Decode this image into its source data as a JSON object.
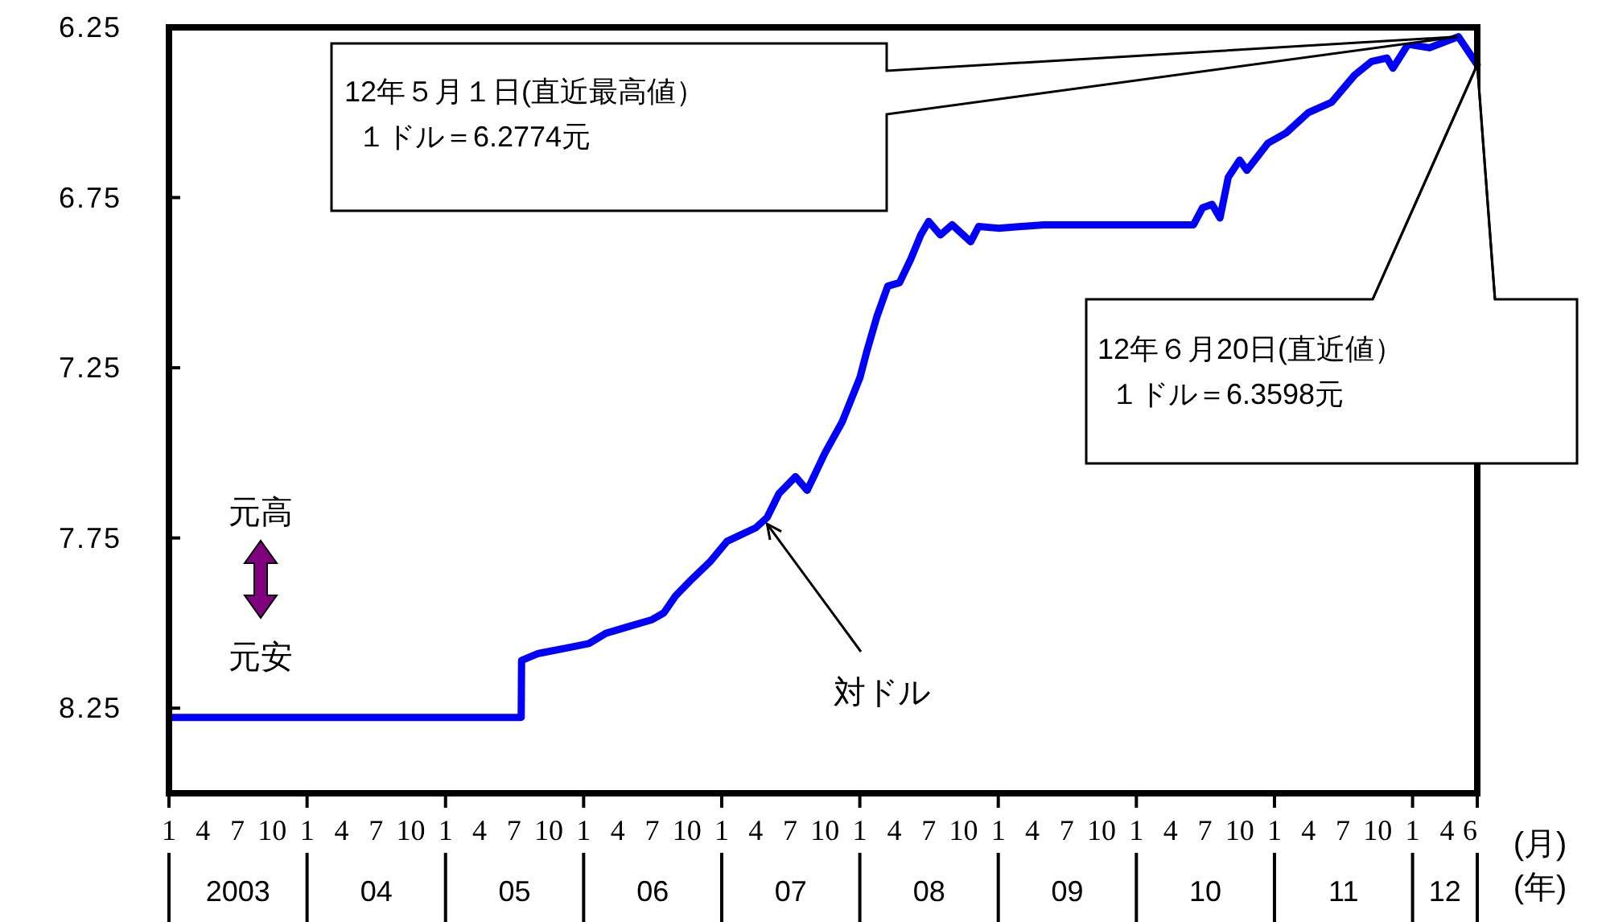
{
  "chart_data": {
    "type": "line",
    "xlabel": "(月)",
    "xlim": [
      "2003-01-01",
      "2012-06-20"
    ],
    "xticks": [
      {
        "value": "2003-01-01",
        "label": "1"
      },
      {
        "value": "2003-04-01",
        "label": "4"
      },
      {
        "value": "2003-07-01",
        "label": "7"
      },
      {
        "value": "2003-10-01",
        "label": "10"
      },
      {
        "value": "2004-01-01",
        "label": "1"
      },
      {
        "value": "2004-04-01",
        "label": "4"
      },
      {
        "value": "2004-07-01",
        "label": "7"
      },
      {
        "value": "2004-10-01",
        "label": "10"
      },
      {
        "value": "2005-01-01",
        "label": "1"
      },
      {
        "value": "2005-04-01",
        "label": "4"
      },
      {
        "value": "2005-07-01",
        "label": "7"
      },
      {
        "value": "2005-10-01",
        "label": "10"
      },
      {
        "value": "2006-01-01",
        "label": "1"
      },
      {
        "value": "2006-04-01",
        "label": "4"
      },
      {
        "value": "2006-07-01",
        "label": "7"
      },
      {
        "value": "2006-10-01",
        "label": "10"
      },
      {
        "value": "2007-01-01",
        "label": "1"
      },
      {
        "value": "2007-04-01",
        "label": "4"
      },
      {
        "value": "2007-07-01",
        "label": "7"
      },
      {
        "value": "2007-10-01",
        "label": "10"
      },
      {
        "value": "2008-01-01",
        "label": "1"
      },
      {
        "value": "2008-04-01",
        "label": "4"
      },
      {
        "value": "2008-07-01",
        "label": "7"
      },
      {
        "value": "2008-10-01",
        "label": "10"
      },
      {
        "value": "2009-01-01",
        "label": "1"
      },
      {
        "value": "2009-04-01",
        "label": "4"
      },
      {
        "value": "2009-07-01",
        "label": "7"
      },
      {
        "value": "2009-10-01",
        "label": "10"
      },
      {
        "value": "2010-01-01",
        "label": "1"
      },
      {
        "value": "2010-04-01",
        "label": "4"
      },
      {
        "value": "2010-07-01",
        "label": "7"
      },
      {
        "value": "2010-10-01",
        "label": "10"
      },
      {
        "value": "2011-01-01",
        "label": "1"
      },
      {
        "value": "2011-04-01",
        "label": "4"
      },
      {
        "value": "2011-07-01",
        "label": "7"
      },
      {
        "value": "2011-10-01",
        "label": "10"
      },
      {
        "value": "2012-01-01",
        "label": "1"
      },
      {
        "value": "2012-04-01",
        "label": "4"
      },
      {
        "value": "2012-06-01",
        "label": "6"
      }
    ],
    "ylim": [
      8.5,
      6.25
    ],
    "yticks": [
      6.25,
      6.75,
      7.25,
      7.75,
      8.25
    ],
    "series": [
      {
        "name": "対ドル",
        "color": "#0000ff",
        "x": [
          "2003-01-02",
          "2003-07-01",
          "2004-01-02",
          "2004-07-01",
          "2005-01-03",
          "2005-07-20",
          "2005-07-21",
          "2005-09-01",
          "2005-12-01",
          "2006-01-15",
          "2006-03-01",
          "2006-05-01",
          "2006-07-01",
          "2006-08-01",
          "2006-09-01",
          "2006-10-15",
          "2006-12-01",
          "2007-01-15",
          "2007-04-01",
          "2007-05-01",
          "2007-06-01",
          "2007-07-15",
          "2007-08-15",
          "2007-10-01",
          "2007-11-15",
          "2008-01-01",
          "2008-01-20",
          "2008-02-15",
          "2008-03-15",
          "2008-04-15",
          "2008-05-15",
          "2008-06-10",
          "2008-07-01",
          "2008-08-01",
          "2008-09-01",
          "2008-10-20",
          "2008-11-10",
          "2009-01-01",
          "2009-05-01",
          "2009-10-01",
          "2010-03-01",
          "2010-06-01",
          "2010-06-25",
          "2010-07-20",
          "2010-08-10",
          "2010-09-01",
          "2010-10-01",
          "2010-10-20",
          "2010-12-15",
          "2011-02-01",
          "2011-04-01",
          "2011-06-01",
          "2011-08-01",
          "2011-09-15",
          "2011-10-25",
          "2011-11-10",
          "2011-12-20",
          "2012-02-15",
          "2012-05-01",
          "2012-06-20"
        ],
        "values": [
          8.277,
          8.277,
          8.277,
          8.277,
          8.277,
          8.277,
          8.11,
          8.09,
          8.07,
          8.06,
          8.03,
          8.01,
          7.99,
          7.97,
          7.92,
          7.87,
          7.82,
          7.76,
          7.72,
          7.69,
          7.62,
          7.57,
          7.61,
          7.5,
          7.41,
          7.28,
          7.2,
          7.1,
          7.01,
          7.0,
          6.93,
          6.86,
          6.82,
          6.86,
          6.83,
          6.88,
          6.835,
          6.84,
          6.83,
          6.83,
          6.83,
          6.83,
          6.78,
          6.77,
          6.81,
          6.69,
          6.64,
          6.67,
          6.59,
          6.56,
          6.5,
          6.47,
          6.39,
          6.35,
          6.34,
          6.37,
          6.3,
          6.31,
          6.2774,
          6.3598
        ]
      }
    ],
    "annotations": [
      "12年５月１日(直近最高値）",
      "１ドル＝6.2774元",
      {
        "text": "12年６月20日(直近値）",
        "x": "2012-06-20",
        "y": 6.3598
      },
      "１ドル＝6.3598元",
      "元高",
      "元安",
      "(年)",
      "2003",
      "04",
      "05",
      "06",
      "07",
      "08",
      "09",
      "10",
      "11",
      "12"
    ]
  }
}
